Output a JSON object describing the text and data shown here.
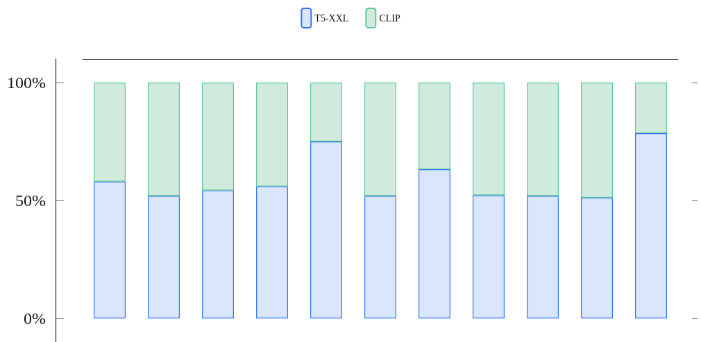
{
  "chart_data": {
    "type": "bar",
    "stacked": true,
    "categories": [
      null,
      null,
      null,
      null,
      null,
      null,
      null,
      null,
      null,
      null,
      null
    ],
    "series": [
      {
        "name": "T5-XXL",
        "color": "#dae6fc",
        "values": [
          58,
          52,
          54.3,
          56,
          75,
          52,
          63.2,
          52.2,
          52,
          51.2,
          78.5
        ]
      },
      {
        "name": "CLIP",
        "color": "#d0ebde",
        "values": [
          42,
          48,
          45.7,
          44,
          25,
          48,
          36.8,
          47.8,
          48,
          48.8,
          21.5
        ]
      }
    ],
    "ylim": [
      -10,
      110
    ],
    "yticks": [
      {
        "value": 0,
        "label": "0%"
      },
      {
        "value": 50,
        "label": "50%"
      },
      {
        "value": 100,
        "label": "100%"
      }
    ],
    "grid": false,
    "legend": "top"
  }
}
